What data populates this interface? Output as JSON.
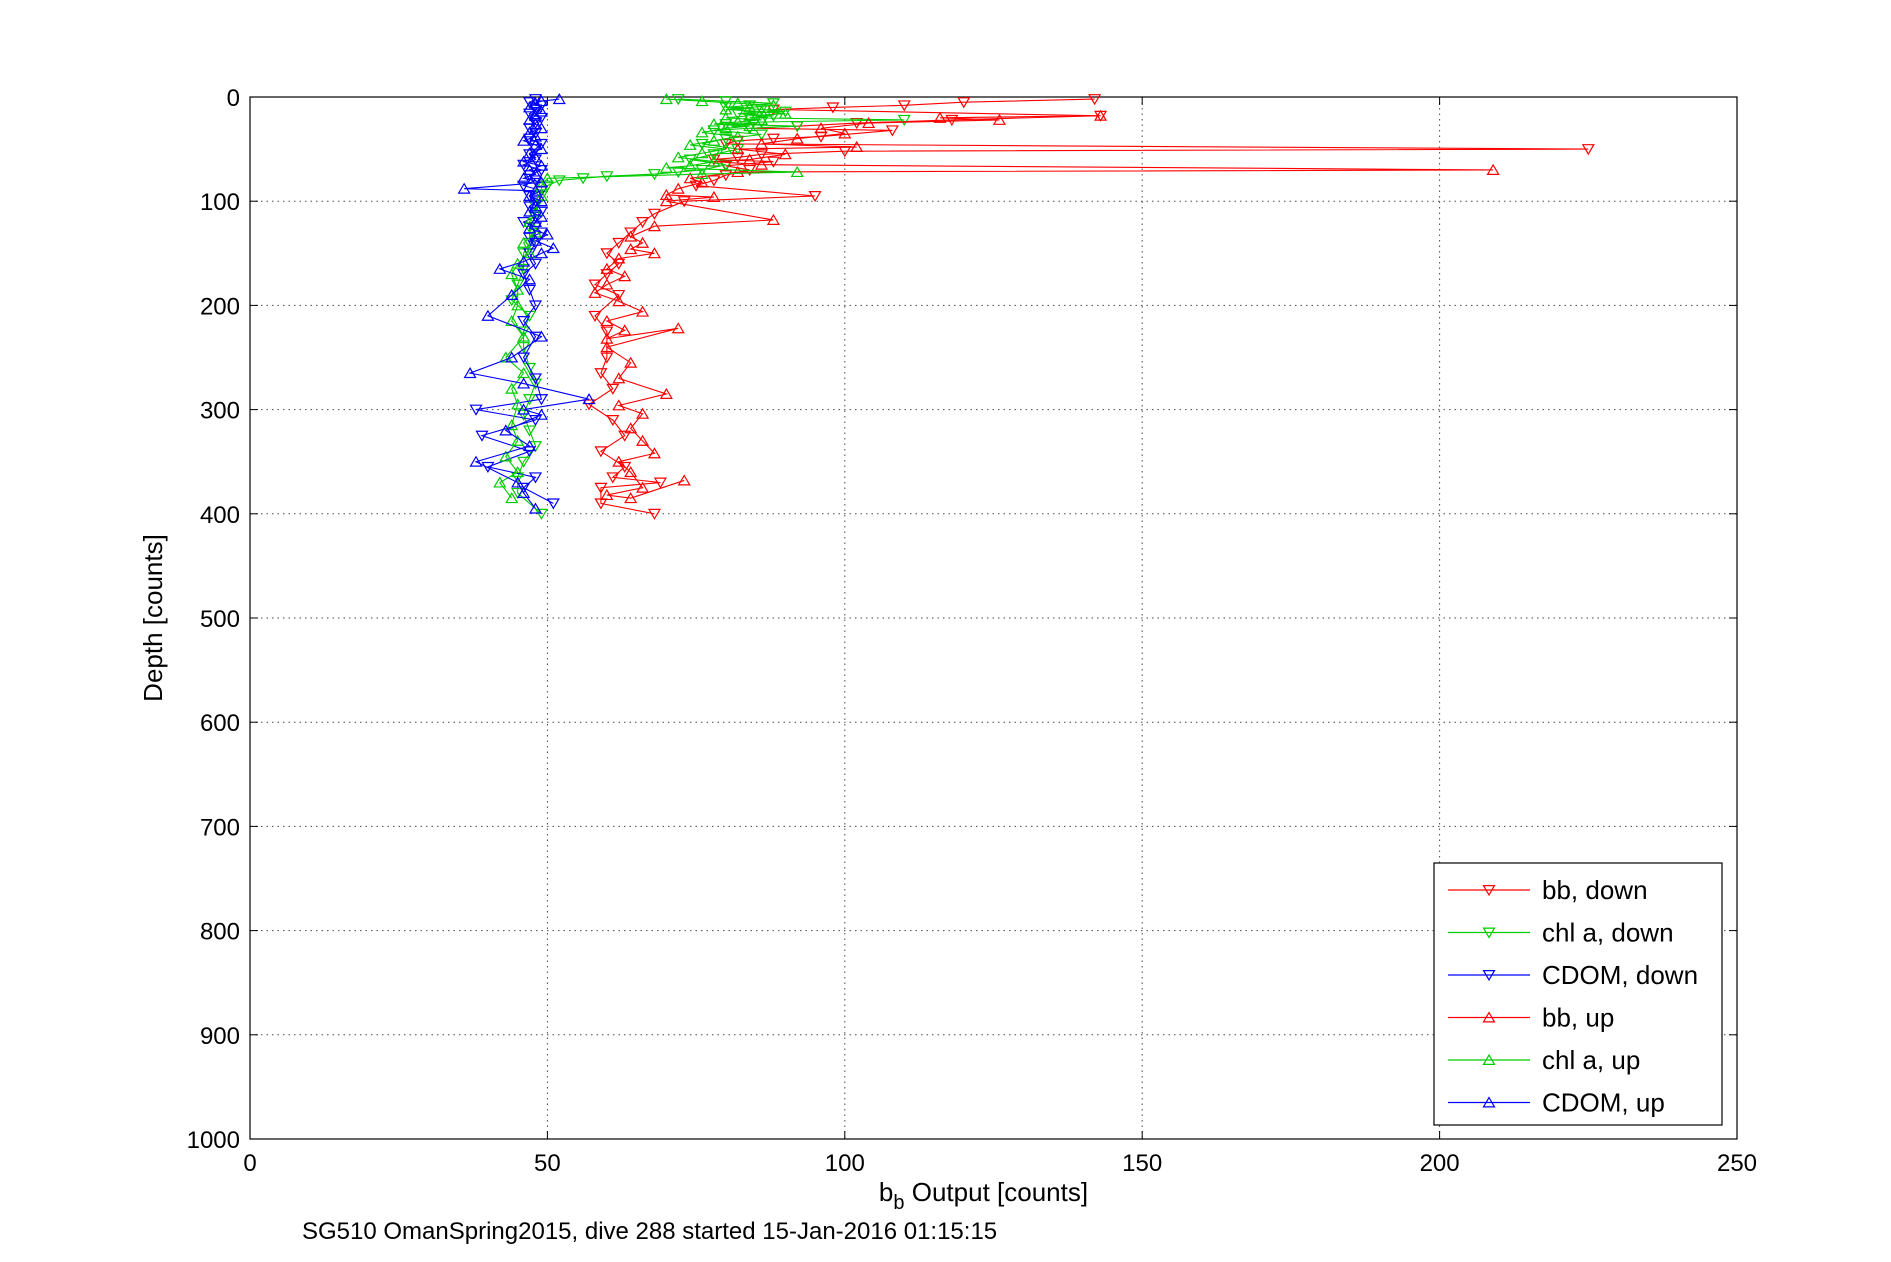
{
  "chart_data": {
    "type": "scatter",
    "title": "",
    "xlabel_main": "b",
    "xlabel_sub": "b",
    "xlabel_rest": " Output [counts]",
    "ylabel": "Depth [counts]",
    "caption": "SG510 OmanSpring2015, dive 288 started 15-Jan-2016 01:15:15",
    "xlim": [
      0,
      250
    ],
    "ylim": [
      0,
      1000
    ],
    "y_reversed": true,
    "grid": true,
    "x_ticks": [
      "0",
      "50",
      "100",
      "150",
      "200",
      "250"
    ],
    "y_ticks": [
      "0",
      "100",
      "200",
      "300",
      "400",
      "500",
      "600",
      "700",
      "800",
      "900",
      "1000"
    ],
    "legend_position": "bottom-right",
    "series": [
      {
        "name": "bb, down",
        "color": "#ff0000",
        "marker": "triangle-down",
        "points": [
          [
            142,
            2
          ],
          [
            120,
            5
          ],
          [
            110,
            8
          ],
          [
            98,
            10
          ],
          [
            88,
            12
          ],
          [
            143,
            18
          ],
          [
            118,
            22
          ],
          [
            102,
            25
          ],
          [
            92,
            28
          ],
          [
            84,
            30
          ],
          [
            108,
            32
          ],
          [
            96,
            38
          ],
          [
            88,
            40
          ],
          [
            82,
            42
          ],
          [
            80,
            45
          ],
          [
            225,
            50
          ],
          [
            100,
            52
          ],
          [
            86,
            55
          ],
          [
            82,
            58
          ],
          [
            78,
            60
          ],
          [
            88,
            62
          ],
          [
            80,
            66
          ],
          [
            84,
            70
          ],
          [
            80,
            75
          ],
          [
            78,
            80
          ],
          [
            75,
            85
          ],
          [
            95,
            95
          ],
          [
            73,
            100
          ],
          [
            68,
            112
          ],
          [
            66,
            120
          ],
          [
            64,
            130
          ],
          [
            62,
            140
          ],
          [
            60,
            150
          ],
          [
            62,
            160
          ],
          [
            60,
            170
          ],
          [
            58,
            180
          ],
          [
            62,
            190
          ],
          [
            58,
            210
          ],
          [
            60,
            225
          ],
          [
            60,
            250
          ],
          [
            59,
            265
          ],
          [
            61,
            280
          ],
          [
            57,
            295
          ],
          [
            61,
            310
          ],
          [
            63,
            325
          ],
          [
            59,
            340
          ],
          [
            63,
            355
          ],
          [
            61,
            365
          ],
          [
            69,
            370
          ],
          [
            59,
            375
          ],
          [
            59,
            390
          ],
          [
            68,
            400
          ]
        ]
      },
      {
        "name": "chl a, down",
        "color": "#00cc00",
        "marker": "triangle-down",
        "points": [
          [
            72,
            2
          ],
          [
            80,
            4
          ],
          [
            88,
            6
          ],
          [
            84,
            8
          ],
          [
            80,
            10
          ],
          [
            86,
            12
          ],
          [
            90,
            14
          ],
          [
            82,
            16
          ],
          [
            88,
            18
          ],
          [
            84,
            20
          ],
          [
            110,
            22
          ],
          [
            86,
            24
          ],
          [
            80,
            26
          ],
          [
            92,
            28
          ],
          [
            84,
            30
          ],
          [
            78,
            32
          ],
          [
            86,
            36
          ],
          [
            80,
            40
          ],
          [
            76,
            45
          ],
          [
            82,
            50
          ],
          [
            78,
            55
          ],
          [
            74,
            60
          ],
          [
            80,
            65
          ],
          [
            76,
            70
          ],
          [
            72,
            72
          ],
          [
            68,
            74
          ],
          [
            60,
            76
          ],
          [
            56,
            78
          ],
          [
            52,
            80
          ],
          [
            50,
            85
          ],
          [
            49,
            95
          ],
          [
            48,
            105
          ],
          [
            48,
            115
          ],
          [
            47,
            125
          ],
          [
            47,
            140
          ],
          [
            46,
            150
          ],
          [
            46,
            165
          ],
          [
            45,
            180
          ],
          [
            44,
            195
          ],
          [
            47,
            210
          ],
          [
            46,
            225
          ],
          [
            46,
            240
          ],
          [
            47,
            260
          ],
          [
            48,
            275
          ],
          [
            47,
            290
          ],
          [
            46,
            305
          ],
          [
            47,
            320
          ],
          [
            48,
            335
          ],
          [
            46,
            350
          ],
          [
            45,
            365
          ],
          [
            45,
            380
          ],
          [
            49,
            400
          ]
        ]
      },
      {
        "name": "CDOM, down",
        "color": "#0000ff",
        "marker": "triangle-down",
        "points": [
          [
            48,
            2
          ],
          [
            47,
            5
          ],
          [
            49,
            8
          ],
          [
            48,
            12
          ],
          [
            47,
            16
          ],
          [
            49,
            20
          ],
          [
            48,
            25
          ],
          [
            47,
            30
          ],
          [
            48,
            35
          ],
          [
            47,
            40
          ],
          [
            49,
            45
          ],
          [
            48,
            50
          ],
          [
            47,
            55
          ],
          [
            48,
            60
          ],
          [
            46,
            65
          ],
          [
            49,
            70
          ],
          [
            47,
            75
          ],
          [
            48,
            80
          ],
          [
            46,
            85
          ],
          [
            49,
            90
          ],
          [
            47,
            95
          ],
          [
            48,
            100
          ],
          [
            47,
            105
          ],
          [
            49,
            110
          ],
          [
            48,
            115
          ],
          [
            46,
            120
          ],
          [
            48,
            125
          ],
          [
            49,
            130
          ],
          [
            47,
            135
          ],
          [
            48,
            140
          ],
          [
            47,
            150
          ],
          [
            48,
            160
          ],
          [
            46,
            170
          ],
          [
            47,
            185
          ],
          [
            48,
            200
          ],
          [
            46,
            215
          ],
          [
            48,
            230
          ],
          [
            46,
            250
          ],
          [
            48,
            270
          ],
          [
            49,
            290
          ],
          [
            38,
            300
          ],
          [
            48,
            310
          ],
          [
            39,
            325
          ],
          [
            47,
            340
          ],
          [
            40,
            355
          ],
          [
            48,
            365
          ],
          [
            46,
            375
          ],
          [
            51,
            390
          ]
        ]
      },
      {
        "name": "bb, up",
        "color": "#ff0000",
        "marker": "triangle-up",
        "points": [
          [
            143,
            18
          ],
          [
            116,
            20
          ],
          [
            126,
            22
          ],
          [
            104,
            25
          ],
          [
            96,
            30
          ],
          [
            100,
            35
          ],
          [
            92,
            40
          ],
          [
            86,
            45
          ],
          [
            102,
            48
          ],
          [
            82,
            50
          ],
          [
            90,
            55
          ],
          [
            84,
            60
          ],
          [
            78,
            62
          ],
          [
            86,
            65
          ],
          [
            209,
            70
          ],
          [
            82,
            72
          ],
          [
            74,
            78
          ],
          [
            76,
            82
          ],
          [
            72,
            88
          ],
          [
            70,
            94
          ],
          [
            78,
            96
          ],
          [
            70,
            100
          ],
          [
            88,
            118
          ],
          [
            68,
            124
          ],
          [
            64,
            134
          ],
          [
            66,
            140
          ],
          [
            64,
            146
          ],
          [
            68,
            150
          ],
          [
            62,
            155
          ],
          [
            60,
            165
          ],
          [
            63,
            172
          ],
          [
            60,
            180
          ],
          [
            58,
            188
          ],
          [
            62,
            196
          ],
          [
            66,
            206
          ],
          [
            60,
            215
          ],
          [
            63,
            224
          ],
          [
            60,
            232
          ],
          [
            72,
            222
          ],
          [
            60,
            240
          ],
          [
            64,
            255
          ],
          [
            62,
            270
          ],
          [
            70,
            285
          ],
          [
            62,
            296
          ],
          [
            66,
            304
          ],
          [
            64,
            318
          ],
          [
            66,
            330
          ],
          [
            68,
            342
          ],
          [
            62,
            350
          ],
          [
            64,
            360
          ],
          [
            66,
            375
          ],
          [
            60,
            382
          ],
          [
            64,
            385
          ],
          [
            73,
            368
          ]
        ]
      },
      {
        "name": "chl a, up",
        "color": "#00cc00",
        "marker": "triangle-up",
        "points": [
          [
            70,
            2
          ],
          [
            76,
            4
          ],
          [
            82,
            6
          ],
          [
            88,
            8
          ],
          [
            84,
            10
          ],
          [
            80,
            12
          ],
          [
            86,
            14
          ],
          [
            90,
            16
          ],
          [
            84,
            18
          ],
          [
            80,
            20
          ],
          [
            86,
            22
          ],
          [
            82,
            24
          ],
          [
            78,
            26
          ],
          [
            84,
            28
          ],
          [
            80,
            30
          ],
          [
            76,
            34
          ],
          [
            82,
            38
          ],
          [
            78,
            42
          ],
          [
            74,
            46
          ],
          [
            80,
            50
          ],
          [
            76,
            54
          ],
          [
            72,
            58
          ],
          [
            78,
            62
          ],
          [
            74,
            66
          ],
          [
            70,
            68
          ],
          [
            92,
            72
          ],
          [
            76,
            74
          ],
          [
            50,
            78
          ],
          [
            49,
            85
          ],
          [
            49,
            95
          ],
          [
            48,
            110
          ],
          [
            47,
            120
          ],
          [
            48,
            130
          ],
          [
            46,
            140
          ],
          [
            47,
            150
          ],
          [
            45,
            160
          ],
          [
            44,
            170
          ],
          [
            45,
            185
          ],
          [
            45,
            200
          ],
          [
            44,
            215
          ],
          [
            46,
            230
          ],
          [
            43,
            250
          ],
          [
            46,
            265
          ],
          [
            44,
            280
          ],
          [
            45,
            295
          ],
          [
            44,
            315
          ],
          [
            45,
            330
          ],
          [
            43,
            345
          ],
          [
            45,
            360
          ],
          [
            42,
            370
          ],
          [
            44,
            385
          ]
        ]
      },
      {
        "name": "CDOM, up",
        "color": "#0000ff",
        "marker": "triangle-up",
        "points": [
          [
            52,
            2
          ],
          [
            49,
            4
          ],
          [
            48,
            6
          ],
          [
            47,
            10
          ],
          [
            49,
            14
          ],
          [
            48,
            18
          ],
          [
            47,
            22
          ],
          [
            48,
            26
          ],
          [
            49,
            30
          ],
          [
            47,
            34
          ],
          [
            48,
            38
          ],
          [
            46,
            42
          ],
          [
            48,
            46
          ],
          [
            49,
            50
          ],
          [
            47,
            54
          ],
          [
            48,
            58
          ],
          [
            46,
            62
          ],
          [
            49,
            66
          ],
          [
            47,
            70
          ],
          [
            48,
            74
          ],
          [
            46,
            78
          ],
          [
            49,
            82
          ],
          [
            36,
            88
          ],
          [
            48,
            90
          ],
          [
            47,
            95
          ],
          [
            49,
            100
          ],
          [
            48,
            105
          ],
          [
            47,
            110
          ],
          [
            49,
            115
          ],
          [
            48,
            120
          ],
          [
            47,
            126
          ],
          [
            50,
            132
          ],
          [
            48,
            138
          ],
          [
            51,
            145
          ],
          [
            49,
            150
          ],
          [
            46,
            158
          ],
          [
            42,
            165
          ],
          [
            47,
            175
          ],
          [
            44,
            190
          ],
          [
            40,
            210
          ],
          [
            49,
            230
          ],
          [
            44,
            250
          ],
          [
            37,
            265
          ],
          [
            46,
            275
          ],
          [
            57,
            290
          ],
          [
            46,
            300
          ],
          [
            49,
            305
          ],
          [
            43,
            320
          ],
          [
            47,
            335
          ],
          [
            38,
            350
          ],
          [
            45,
            370
          ],
          [
            46,
            380
          ],
          [
            48,
            395
          ]
        ]
      }
    ]
  }
}
